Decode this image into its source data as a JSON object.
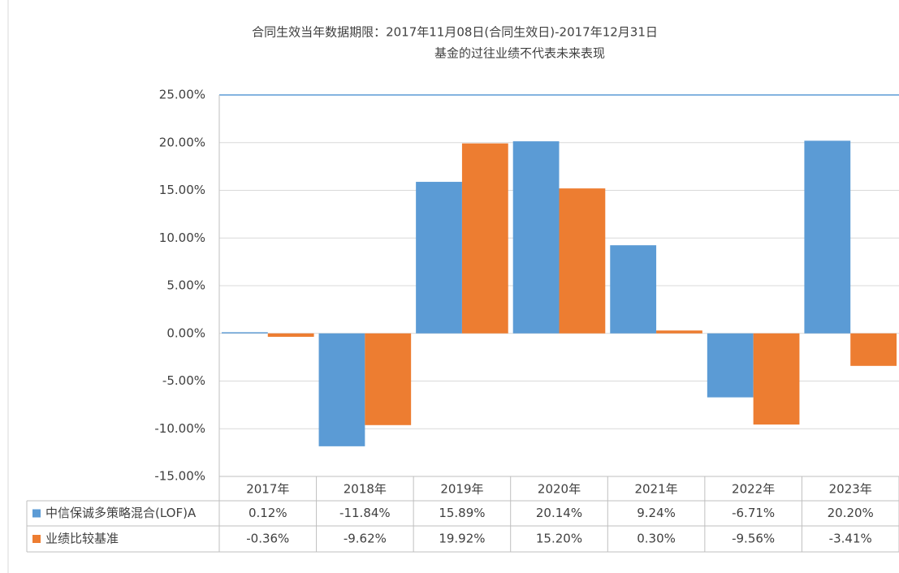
{
  "chart_data": {
    "type": "bar",
    "title": "合同生效当年数据期限：2017年11月08日(合同生效日)-2017年12月31日",
    "subtitle": "基金的过往业绩不代表未来表现",
    "categories": [
      "2017年",
      "2018年",
      "2019年",
      "2020年",
      "2021年",
      "2022年",
      "2023年"
    ],
    "series": [
      {
        "name": "中信保诚多策略混合(LOF)A",
        "color": "#5b9bd5",
        "values": [
          0.12,
          -11.84,
          15.89,
          20.14,
          9.24,
          -6.71,
          20.2
        ],
        "value_labels": [
          "0.12%",
          "-11.84%",
          "15.89%",
          "20.14%",
          "9.24%",
          "-6.71%",
          "20.20%"
        ]
      },
      {
        "name": "业绩比较基准",
        "color": "#ed7d31",
        "values": [
          -0.36,
          -9.62,
          19.92,
          15.2,
          0.3,
          -9.56,
          -3.41
        ],
        "value_labels": [
          "-0.36%",
          "-9.62%",
          "19.92%",
          "15.20%",
          "0.30%",
          "-9.56%",
          "-3.41%"
        ]
      }
    ],
    "ylim": [
      -15,
      25
    ],
    "yticks": [
      {
        "value": -15,
        "label": "-15.00%"
      },
      {
        "value": -10,
        "label": "-10.00%"
      },
      {
        "value": -5,
        "label": "-5.00%"
      },
      {
        "value": 0,
        "label": "0.00%"
      },
      {
        "value": 5,
        "label": "5.00%"
      },
      {
        "value": 10,
        "label": "10.00%"
      },
      {
        "value": 15,
        "label": "15.00%"
      },
      {
        "value": 20,
        "label": "20.00%"
      },
      {
        "value": 25,
        "label": "25.00%"
      }
    ],
    "grid": true
  }
}
